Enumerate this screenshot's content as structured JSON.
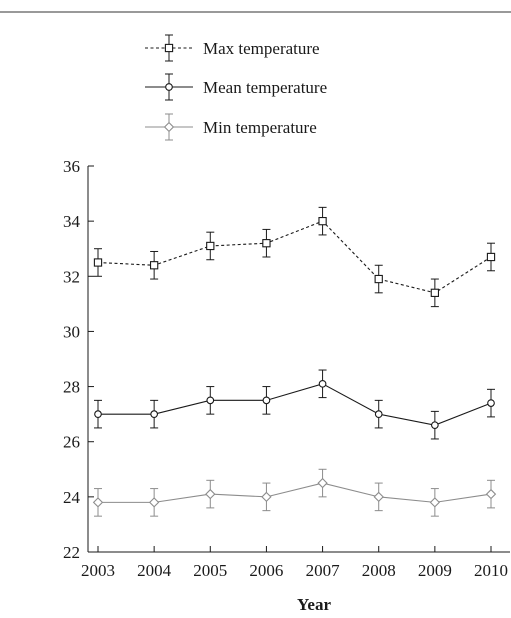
{
  "chart_data": {
    "type": "line",
    "title": "",
    "xlabel": "Year",
    "ylabel": "",
    "x": [
      "2003",
      "2004",
      "2005",
      "2006",
      "2007",
      "2008",
      "2009",
      "2010"
    ],
    "ylim": [
      22,
      36
    ],
    "yticks": [
      "22",
      "24",
      "26",
      "28",
      "30",
      "32",
      "34",
      "36"
    ],
    "legend_position": "top",
    "series": [
      {
        "name": "Max temperature",
        "values": [
          32.5,
          32.4,
          33.1,
          33.2,
          34.0,
          31.9,
          31.4,
          32.7
        ],
        "error": [
          0.5,
          0.5,
          0.5,
          0.5,
          0.5,
          0.5,
          0.5,
          0.5
        ],
        "marker": "square",
        "line_style": "dotted",
        "color": "#1a1a1a"
      },
      {
        "name": "Mean temperature",
        "values": [
          27.0,
          27.0,
          27.5,
          27.5,
          28.1,
          27.0,
          26.6,
          27.4
        ],
        "error": [
          0.5,
          0.5,
          0.5,
          0.5,
          0.5,
          0.5,
          0.5,
          0.5
        ],
        "marker": "circle",
        "line_style": "solid",
        "color": "#1a1a1a"
      },
      {
        "name": "Min temperature",
        "values": [
          23.8,
          23.8,
          24.1,
          24.0,
          24.5,
          24.0,
          23.8,
          24.1
        ],
        "error": [
          0.5,
          0.5,
          0.5,
          0.5,
          0.5,
          0.5,
          0.5,
          0.5
        ],
        "marker": "diamond",
        "line_style": "solid",
        "color": "#8c8c8c"
      }
    ]
  }
}
